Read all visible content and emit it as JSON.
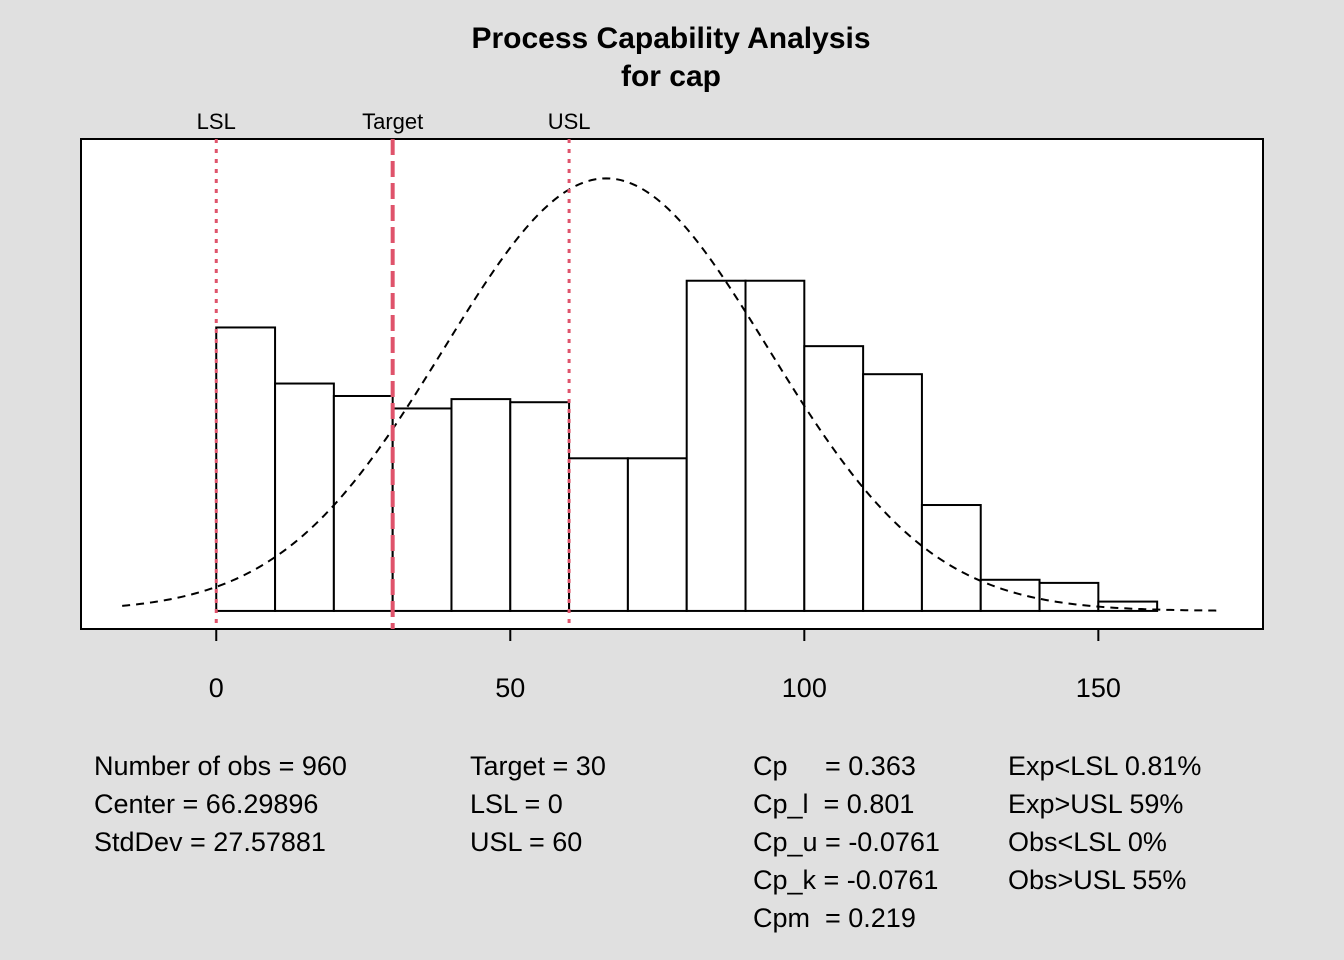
{
  "chart_data": {
    "type": "histogram",
    "title": [
      "Process Capability Analysis",
      "for cap"
    ],
    "bins": [
      0,
      10,
      20,
      30,
      40,
      50,
      60,
      70,
      80,
      90,
      100,
      110,
      120,
      130,
      140,
      150,
      160
    ],
    "values": [
      91,
      73,
      69,
      65,
      68,
      67,
      49,
      49,
      106,
      106,
      85,
      76,
      34,
      10,
      9,
      3
    ],
    "color": "#ffffff",
    "xlim": [
      -23,
      178
    ],
    "ylim": [
      -5.8,
      151.5
    ],
    "xticks": [
      0,
      50,
      100,
      150
    ],
    "normal_curve": {
      "n": 960,
      "mean": 66.29896,
      "sd": 27.57881
    },
    "spec_lines": [
      {
        "name": "LSL",
        "value": 0,
        "style": "dotted"
      },
      {
        "name": "Target",
        "value": 30,
        "style": "dashed"
      },
      {
        "name": "USL",
        "value": 60,
        "style": "dotted"
      }
    ],
    "spec_color": "#df536b",
    "stats": [
      [
        "Number of obs = 960",
        "Center = 66.29896",
        "StdDev = 27.57881"
      ],
      [
        "Target = 30",
        "LSL = 0",
        "USL = 60"
      ],
      [
        "Cp     = 0.363",
        "Cp_l  = 0.801",
        "Cp_u = -0.0761",
        "Cp_k = -0.0761",
        "Cpm  = 0.219"
      ],
      [
        "Exp<LSL 0.81%",
        "Exp>USL 59%",
        "Obs<LSL 0%",
        "Obs>USL 55%"
      ]
    ]
  }
}
